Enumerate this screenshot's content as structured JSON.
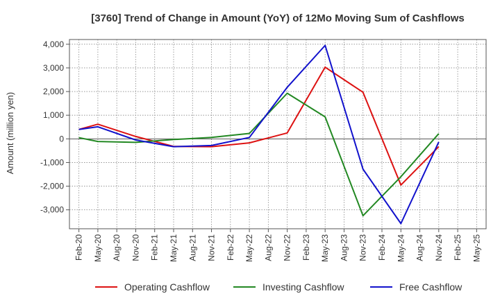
{
  "chart_data": {
    "type": "line",
    "title": "[3760]  Trend of Change in Amount (YoY) of 12Mo Moving Sum of Cashflows",
    "xlabel": "",
    "ylabel": "Amount (million yen)",
    "ylim": [
      -3800,
      4200
    ],
    "yticks": [
      4000,
      3000,
      2000,
      1000,
      0,
      -1000,
      -2000,
      -3000
    ],
    "ytick_labels": [
      "4,000",
      "3,000",
      "2,000",
      "1,000",
      "0",
      "-1,000",
      "-2,000",
      "-3,000"
    ],
    "grid": true,
    "legend_position": "bottom",
    "categories": [
      "Feb-20",
      "May-20",
      "Aug-20",
      "Nov-20",
      "Feb-21",
      "May-21",
      "Aug-21",
      "Nov-21",
      "Feb-22",
      "May-22",
      "Aug-22",
      "Nov-22",
      "Feb-23",
      "May-23",
      "Aug-23",
      "Nov-23",
      "Feb-24",
      "May-24",
      "Aug-24",
      "Nov-24",
      "Feb-25",
      "May-25"
    ],
    "series": [
      {
        "name": "Operating Cashflow",
        "color": "#dd1111",
        "values": [
          400,
          620,
          null,
          100,
          null,
          -320,
          null,
          -330,
          null,
          -170,
          null,
          250,
          null,
          3030,
          null,
          1970,
          null,
          -1950,
          null,
          -330,
          null,
          null
        ]
      },
      {
        "name": "Investing Cashflow",
        "color": "#228822",
        "values": [
          50,
          -110,
          null,
          -150,
          null,
          -30,
          null,
          60,
          null,
          230,
          null,
          1930,
          null,
          930,
          null,
          -3250,
          null,
          -1600,
          null,
          220,
          null,
          null
        ]
      },
      {
        "name": "Free Cashflow",
        "color": "#1111cc",
        "values": [
          400,
          510,
          null,
          -50,
          null,
          -330,
          null,
          -280,
          null,
          60,
          null,
          2180,
          null,
          3950,
          null,
          -1280,
          null,
          -3580,
          null,
          -130,
          null,
          null
        ]
      }
    ]
  }
}
